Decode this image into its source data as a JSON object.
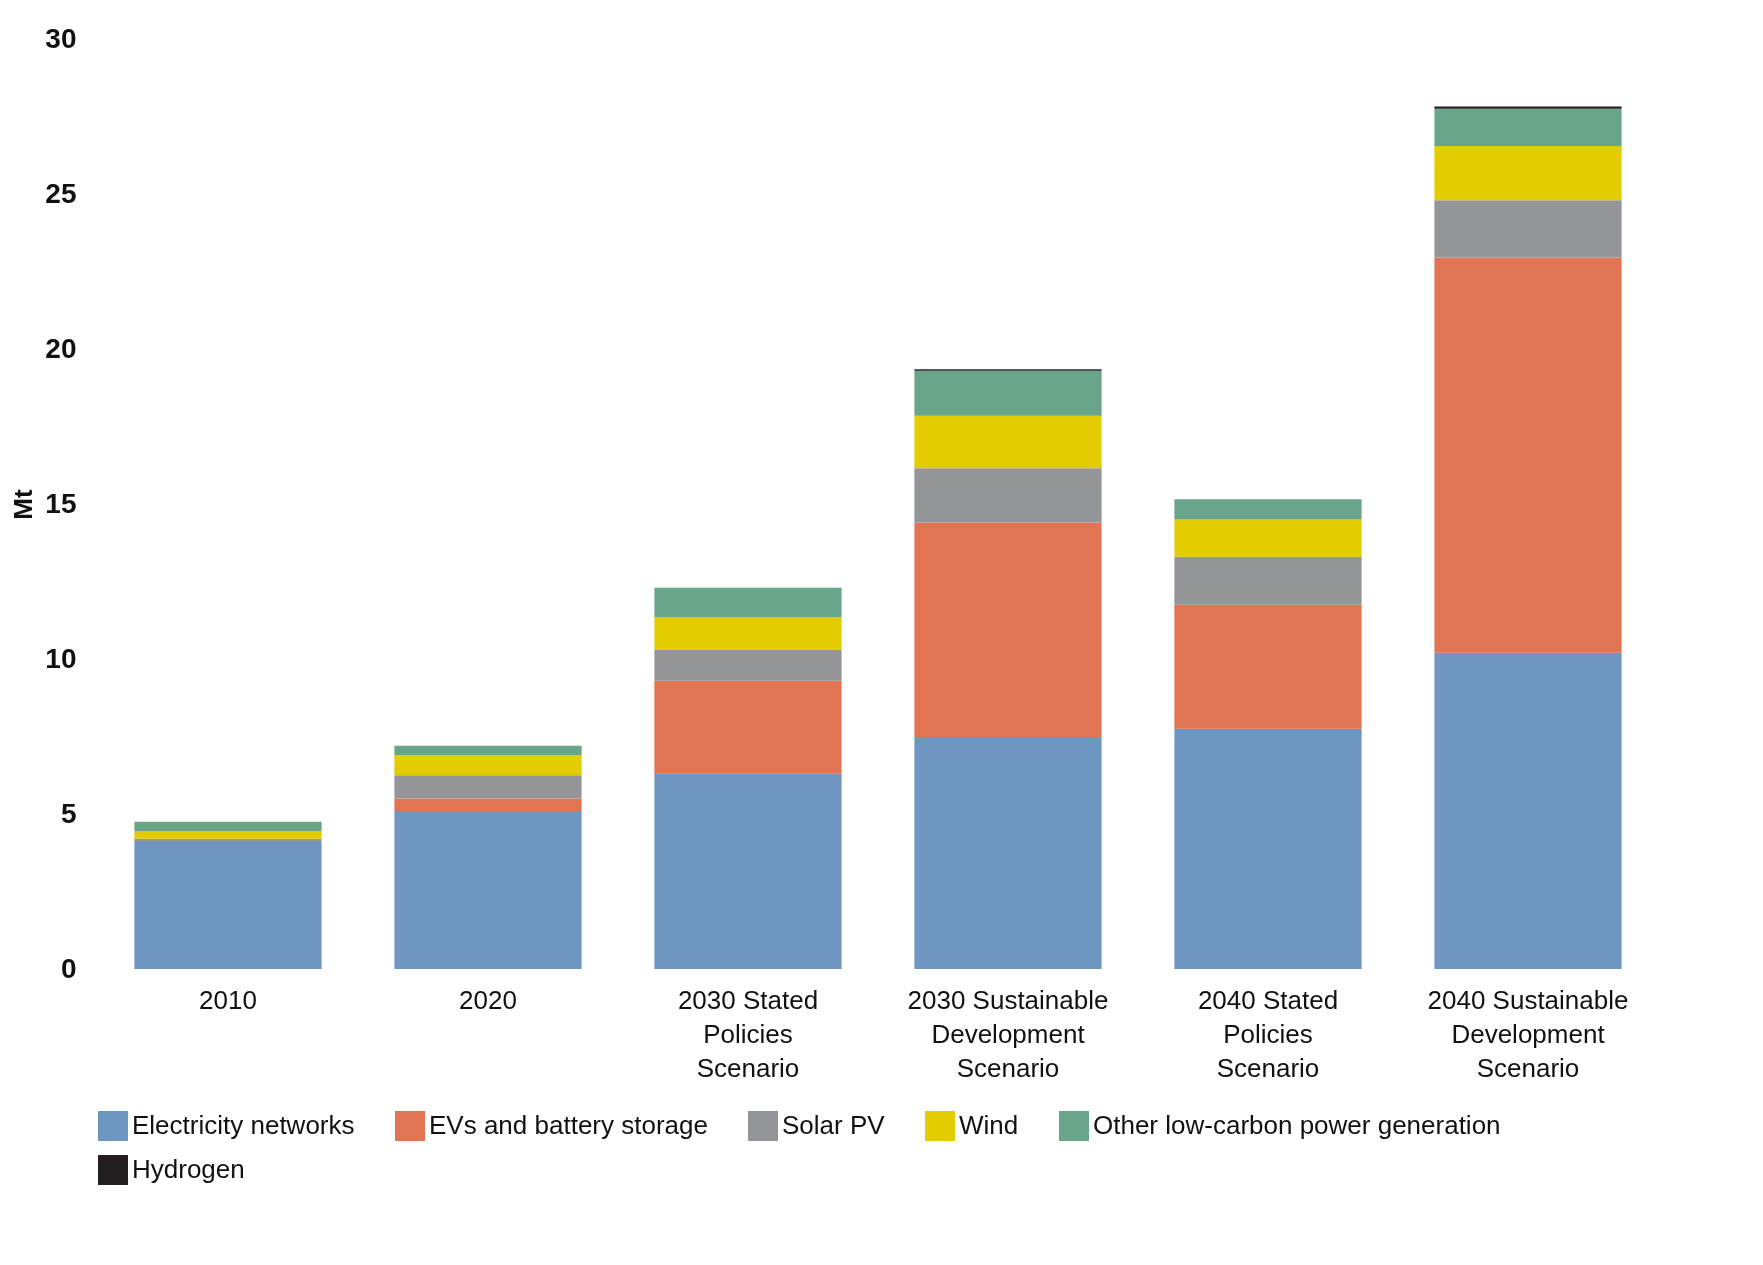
{
  "chart_data": {
    "type": "bar",
    "stacked": true,
    "ylabel": "Mt",
    "categories": [
      "2010",
      "2020",
      "2030 Stated Policies Scenario",
      "2030 Sustainable Development Scenario",
      "2040 Stated Policies Scenario",
      "2040 Sustainable Development Scenario"
    ],
    "ylim": [
      0,
      30
    ],
    "yticks": [
      0,
      5,
      10,
      15,
      20,
      25,
      30
    ],
    "grid": false,
    "legend": "bottom",
    "series": [
      {
        "name": "Electricity networks",
        "color": "#6f95c1",
        "values": [
          4.1,
          5.1,
          6.3,
          7.45,
          7.75,
          10.2
        ]
      },
      {
        "name": "EVs and battery storage",
        "color": "#e07453",
        "values": [
          null,
          0.4,
          3.0,
          6.95,
          4.0,
          12.75
        ]
      },
      {
        "name": "Solar PV",
        "color": "#939598",
        "values": [
          0.1,
          0.75,
          1.0,
          1.75,
          1.55,
          1.85
        ]
      },
      {
        "name": "Wind",
        "color": "#e3cc00",
        "values": [
          0.25,
          0.65,
          1.05,
          1.7,
          1.2,
          1.75
        ]
      },
      {
        "name": "Other low-carbon power generation",
        "color": "#69a58a",
        "values": [
          0.3,
          0.3,
          0.95,
          1.45,
          0.65,
          1.2
        ]
      },
      {
        "name": "Hydrogen",
        "color": "#231f20",
        "values": [
          null,
          null,
          null,
          0.05,
          null,
          0.07
        ]
      }
    ]
  }
}
